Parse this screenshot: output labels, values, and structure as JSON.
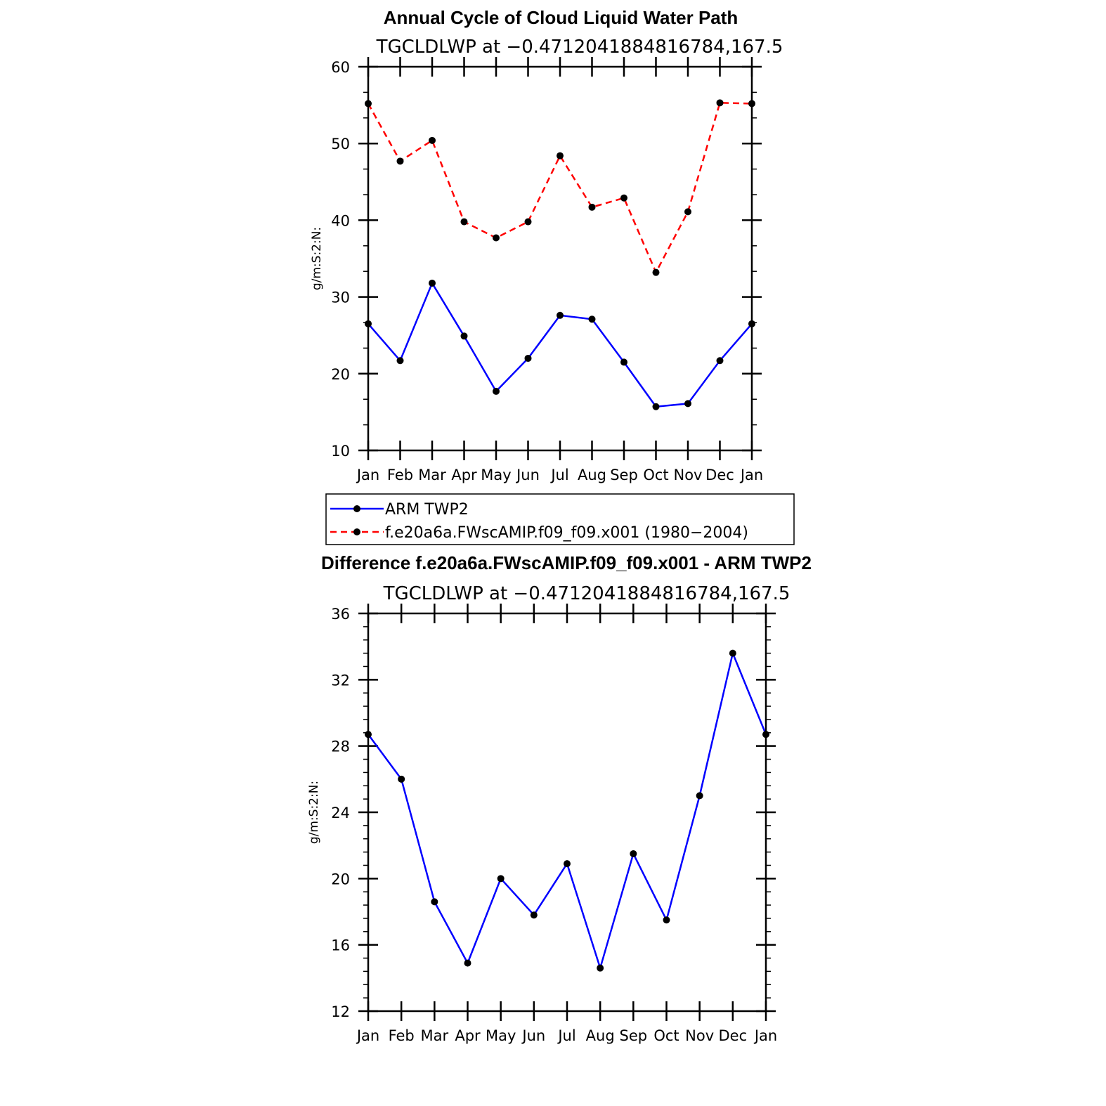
{
  "chart_data": [
    {
      "type": "line",
      "title": "Annual Cycle of Cloud Liquid Water Path",
      "subtitle": "TGCLDLWP  at  −0.4712041884816784,167.5",
      "ylabel": "g/m:S:2:N:",
      "ylim": [
        10,
        60
      ],
      "yticks": [
        10,
        20,
        30,
        40,
        50,
        60
      ],
      "yminor": 2,
      "categories": [
        "Jan",
        "Feb",
        "Mar",
        "Apr",
        "May",
        "Jun",
        "Jul",
        "Aug",
        "Sep",
        "Oct",
        "Nov",
        "Dec",
        "Jan"
      ],
      "series": [
        {
          "name": "ARM TWP2",
          "color": "#0000ff",
          "dash": "solid",
          "values": [
            26.5,
            21.7,
            31.8,
            24.9,
            17.7,
            22.0,
            27.6,
            27.1,
            21.5,
            15.7,
            16.1,
            21.7,
            26.5
          ]
        },
        {
          "name": "f.e20a6a.FWscAMIP.f09_f09.x001 (1980−2004)",
          "color": "#ff0000",
          "dash": "dashed",
          "values": [
            55.2,
            47.7,
            50.4,
            39.8,
            37.7,
            39.8,
            48.4,
            41.7,
            42.9,
            33.2,
            41.1,
            55.3,
            55.2
          ]
        }
      ],
      "legend": [
        {
          "label": "ARM TWP2",
          "color": "#0000ff",
          "dash": "solid"
        },
        {
          "label": "f.e20a6a.FWscAMIP.f09_f09.x001 (1980−2004)",
          "color": "#ff0000",
          "dash": "dashed"
        }
      ]
    },
    {
      "type": "line",
      "title": "Difference f.e20a6a.FWscAMIP.f09_f09.x001 - ARM TWP2",
      "subtitle": "TGCLDLWP  at  −0.4712041884816784,167.5",
      "ylabel": "g/m:S:2:N:",
      "ylim": [
        12,
        36
      ],
      "yticks": [
        12,
        16,
        20,
        24,
        28,
        32,
        36
      ],
      "yminor": 4,
      "categories": [
        "Jan",
        "Feb",
        "Mar",
        "Apr",
        "May",
        "Jun",
        "Jul",
        "Aug",
        "Sep",
        "Oct",
        "Nov",
        "Dec",
        "Jan"
      ],
      "series": [
        {
          "name": "Difference",
          "color": "#0000ff",
          "dash": "solid",
          "values": [
            28.7,
            26.0,
            18.6,
            14.9,
            20.0,
            17.8,
            20.9,
            14.6,
            21.5,
            17.5,
            25.0,
            33.6,
            28.7
          ]
        }
      ]
    }
  ]
}
